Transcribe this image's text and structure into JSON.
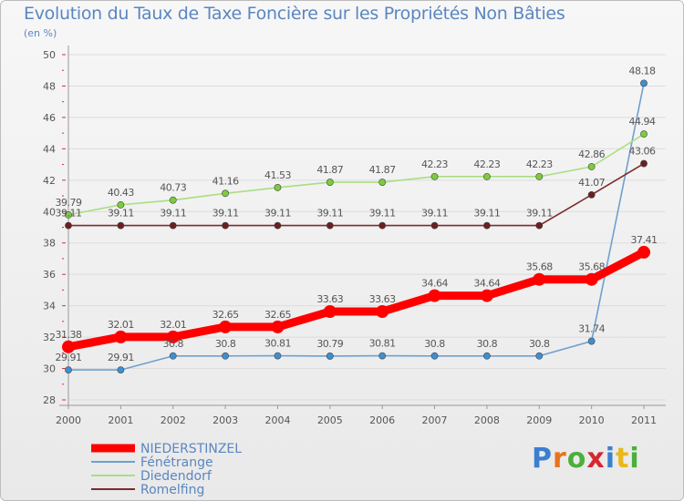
{
  "title": "Evolution du Taux de Taxe Foncière sur les Propriétés Non Bâties",
  "subtitle": "(en %)",
  "logo": {
    "letters": [
      "P",
      "r",
      "o",
      "x",
      "i",
      "t",
      "i"
    ],
    "colors": [
      "#3a7fd0",
      "#e8731c",
      "#4caf3a",
      "#d6262f",
      "#3a7fd0",
      "#e8b81c",
      "#4caf3a"
    ]
  },
  "chart_data": {
    "type": "line",
    "x": [
      "2000",
      "2001",
      "2002",
      "2003",
      "2004",
      "2005",
      "2006",
      "2007",
      "2008",
      "2009",
      "2010",
      "2011"
    ],
    "ylim": [
      28,
      50
    ],
    "yticks": [
      "28",
      "30",
      "32",
      "34",
      "36",
      "38",
      "40",
      "42",
      "44",
      "46",
      "48",
      "50"
    ],
    "grid": "horizontal",
    "legend_position": "bottom-left",
    "series": [
      {
        "name": "NIEDERSTINZEL",
        "color": "#ff0000",
        "values": [
          31.38,
          32.01,
          32.01,
          32.65,
          32.65,
          33.63,
          33.63,
          34.64,
          34.64,
          35.68,
          35.68,
          37.41
        ],
        "labels": [
          "31.38",
          "32.01",
          "32.01",
          "32.65",
          "32.65",
          "33.63",
          "33.63",
          "34.64",
          "34.64",
          "35.68",
          "35.68",
          "37.41"
        ]
      },
      {
        "name": "Fénétrange",
        "color": "#6fa0d0",
        "values": [
          29.91,
          29.91,
          30.8,
          30.8,
          30.81,
          30.79,
          30.81,
          30.8,
          30.8,
          30.8,
          31.74,
          48.18
        ],
        "labels": [
          "29.91",
          "29.91",
          "30.8",
          "30.8",
          "30.81",
          "30.79",
          "30.81",
          "30.8",
          "30.8",
          "30.8",
          "31.74",
          "48.18"
        ]
      },
      {
        "name": "Diedendorf",
        "color": "#a8df80",
        "values": [
          39.79,
          40.43,
          40.73,
          41.16,
          41.53,
          41.87,
          41.87,
          42.23,
          42.23,
          42.23,
          42.86,
          44.94
        ],
        "labels": [
          "39.79",
          "40.43",
          "40.73",
          "41.16",
          "41.53",
          "41.87",
          "41.87",
          "42.23",
          "42.23",
          "42.23",
          "42.86",
          "44.94"
        ]
      },
      {
        "name": "Romelfing",
        "color": "#7a2d2d",
        "values": [
          39.11,
          39.11,
          39.11,
          39.11,
          39.11,
          39.11,
          39.11,
          39.11,
          39.11,
          39.11,
          41.07,
          43.06
        ],
        "labels": [
          "39.11",
          "39.11",
          "39.11",
          "39.11",
          "39.11",
          "39.11",
          "39.11",
          "39.11",
          "39.11",
          "39.11",
          "41.07",
          "43.06"
        ]
      }
    ]
  }
}
